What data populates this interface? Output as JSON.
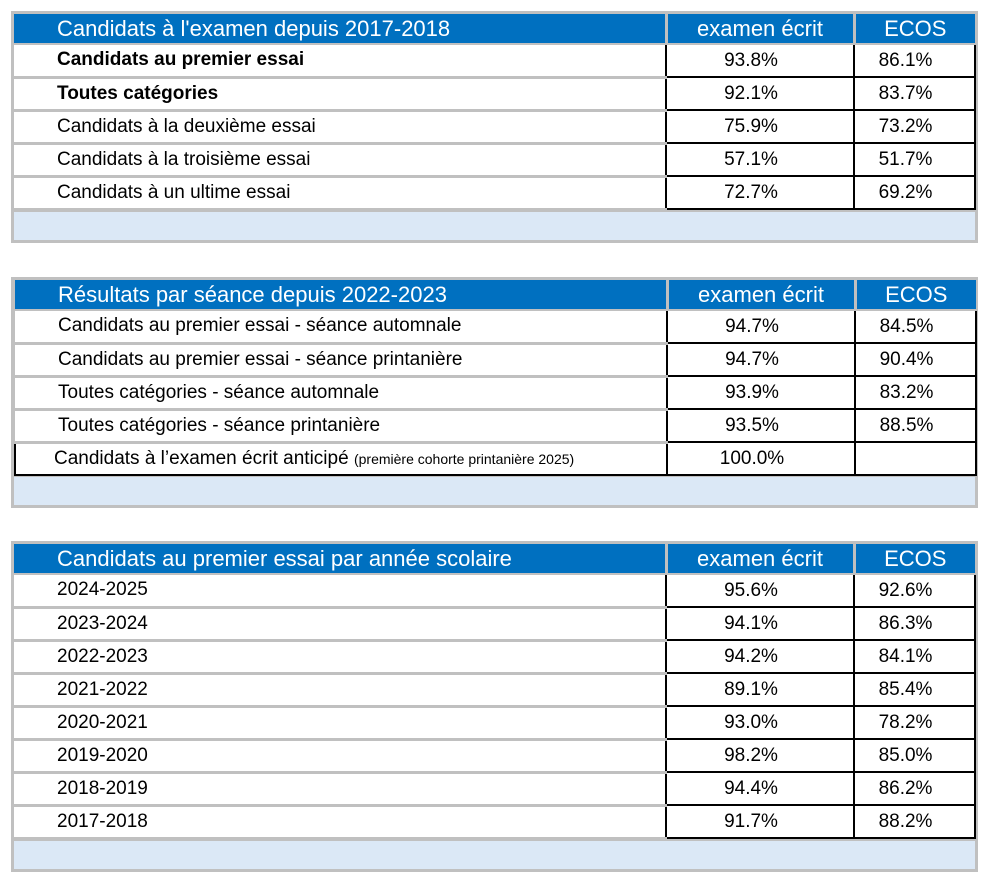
{
  "tables": [
    {
      "title": "Candidats à l'examen depuis 2017-2018",
      "col_written": "examen écrit",
      "col_osce": "ECOS",
      "rows": [
        {
          "label": "Candidats au premier essai",
          "written": "93.8%",
          "osce": "86.1%"
        },
        {
          "label": "Toutes catégories",
          "written": "92.1%",
          "osce": "83.7%"
        },
        {
          "label": "Candidats à la deuxième essai",
          "written": "75.9%",
          "osce": "73.2%"
        },
        {
          "label": "Candidats à la troisième essai",
          "written": "57.1%",
          "osce": "51.7%"
        },
        {
          "label": "Candidats à un ultime essai",
          "written": "72.7%",
          "osce": "69.2%"
        }
      ]
    },
    {
      "title": "Résultats par séance depuis 2022-2023",
      "col_written": "examen écrit",
      "col_osce": "ECOS",
      "rows": [
        {
          "label": "Candidats au premier essai - séance automnale",
          "written": "94.7%",
          "osce": "84.5%"
        },
        {
          "label": "Candidats au premier essai - séance printanière",
          "written": "94.7%",
          "osce": "90.4%"
        },
        {
          "label": "Toutes catégories - séance automnale",
          "written": "93.9%",
          "osce": "83.2%"
        },
        {
          "label": "Toutes catégories - séance printanière",
          "written": "93.5%",
          "osce": "88.5%"
        },
        {
          "label": "Candidats à l’examen écrit anticipé",
          "note": "(première cohorte printanière 2025)",
          "written": "100.0%",
          "osce": ""
        }
      ]
    },
    {
      "title": "Candidats au premier essai par année scolaire",
      "col_written": "examen écrit",
      "col_osce": "ECOS",
      "rows": [
        {
          "label": "2024-2025",
          "written": "95.6%",
          "osce": "92.6%"
        },
        {
          "label": "2023-2024",
          "written": "94.1%",
          "osce": "86.3%"
        },
        {
          "label": "2022-2023",
          "written": "94.2%",
          "osce": "84.1%"
        },
        {
          "label": "2021-2022",
          "written": "89.1%",
          "osce": "85.4%"
        },
        {
          "label": "2020-2021",
          "written": "93.0%",
          "osce": "78.2%"
        },
        {
          "label": "2019-2020",
          "written": "98.2%",
          "osce": "85.0%"
        },
        {
          "label": "2018-2019",
          "written": "94.4%",
          "osce": "86.2%"
        },
        {
          "label": "2017-2018",
          "written": "91.7%",
          "osce": "88.2%"
        }
      ]
    }
  ]
}
